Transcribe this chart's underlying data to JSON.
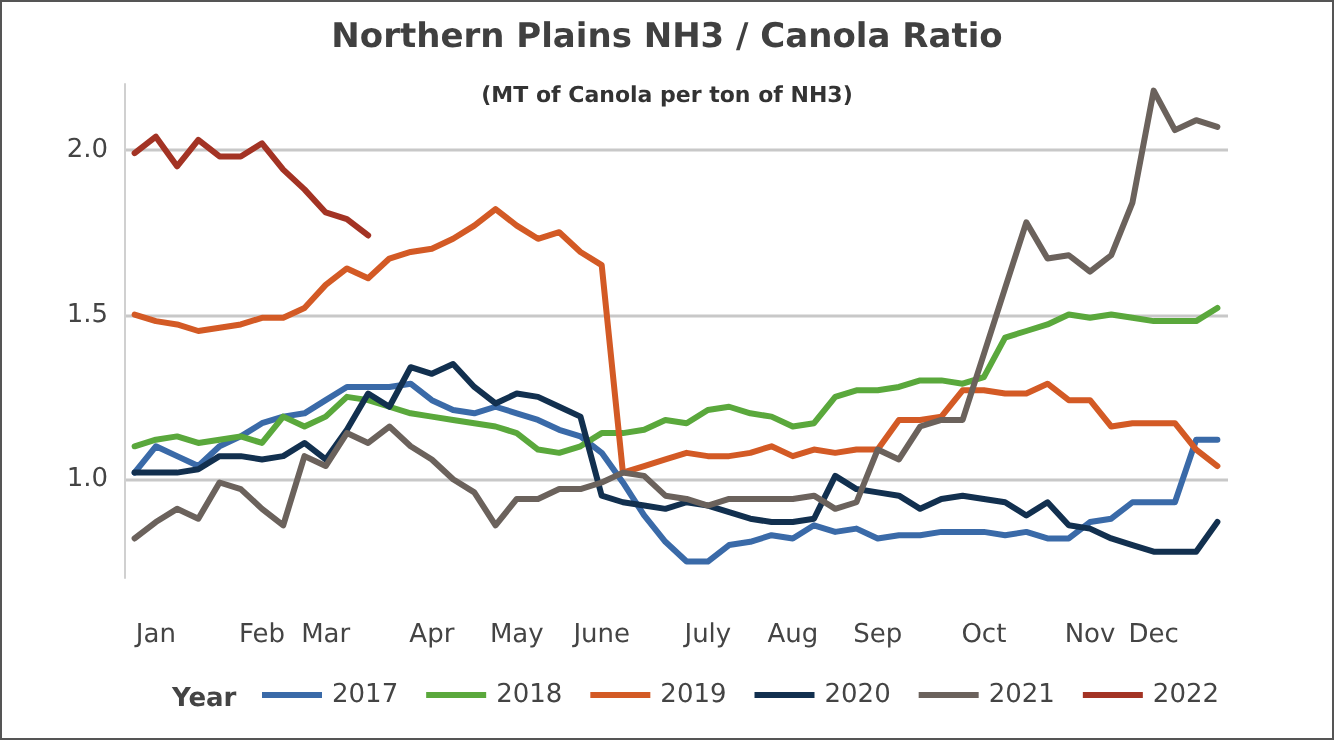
{
  "chart_data": {
    "type": "line",
    "title": "Northern Plains NH3 / Canola Ratio",
    "subtitle": "(MT of Canola per ton of NH3)",
    "legend_title": "Year",
    "legend": "bottom",
    "grid": "y",
    "marker": "none",
    "line_style": "solid",
    "categories": [
      null,
      "Jan",
      null,
      null,
      null,
      null,
      "Feb",
      null,
      null,
      "Mar",
      null,
      null,
      null,
      null,
      "Apr",
      null,
      null,
      null,
      "May",
      null,
      null,
      null,
      "June",
      null,
      null,
      null,
      null,
      "July",
      null,
      null,
      null,
      "Aug",
      null,
      null,
      null,
      "Sep",
      null,
      null,
      null,
      null,
      "Oct",
      null,
      null,
      null,
      null,
      "Nov",
      null,
      null,
      "Dec",
      null,
      null,
      null
    ],
    "ylim": [
      0.7,
      2.2
    ],
    "yticks": [
      {
        "value": 1,
        "label": "1.0"
      },
      1.5,
      {
        "value": 2,
        "label": "2.0"
      }
    ],
    "series": [
      {
        "name": "2017",
        "color": "#3a6aa8",
        "values": [
          1.02,
          1.1,
          1.07,
          1.04,
          1.1,
          1.13,
          1.17,
          1.19,
          1.2,
          1.24,
          1.28,
          1.28,
          1.28,
          1.29,
          1.24,
          1.21,
          1.2,
          1.22,
          1.2,
          1.18,
          1.15,
          1.13,
          1.08,
          0.99,
          0.89,
          0.81,
          0.75,
          0.75,
          0.8,
          0.81,
          0.83,
          0.82,
          0.86,
          0.84,
          0.85,
          0.82,
          0.83,
          0.83,
          0.84,
          0.84,
          0.84,
          0.83,
          0.84,
          0.82,
          0.82,
          0.87,
          0.88,
          0.93,
          0.93,
          0.93,
          1.12,
          1.12
        ]
      },
      {
        "name": "2018",
        "color": "#5aa83c",
        "values": [
          1.1,
          1.12,
          1.13,
          1.11,
          1.12,
          1.13,
          1.11,
          1.19,
          1.16,
          1.19,
          1.25,
          1.24,
          1.22,
          1.2,
          1.19,
          1.18,
          1.17,
          1.16,
          1.14,
          1.09,
          1.08,
          1.1,
          1.14,
          1.14,
          1.15,
          1.18,
          1.17,
          1.21,
          1.22,
          1.2,
          1.19,
          1.16,
          1.17,
          1.25,
          1.27,
          1.27,
          1.28,
          1.3,
          1.3,
          1.29,
          1.31,
          1.43,
          1.45,
          1.47,
          1.5,
          1.49,
          1.5,
          1.49,
          1.48,
          1.48,
          1.48,
          1.52
        ]
      },
      {
        "name": "2019",
        "color": "#d35a25",
        "values": [
          1.5,
          1.48,
          1.47,
          1.45,
          1.46,
          1.47,
          1.49,
          1.49,
          1.52,
          1.59,
          1.64,
          1.61,
          1.67,
          1.69,
          1.7,
          1.73,
          1.77,
          1.82,
          1.77,
          1.73,
          1.75,
          1.69,
          1.65,
          1.02,
          1.04,
          1.06,
          1.08,
          1.07,
          1.07,
          1.08,
          1.1,
          1.07,
          1.09,
          1.08,
          1.09,
          1.09,
          1.18,
          1.18,
          1.19,
          1.27,
          1.27,
          1.26,
          1.26,
          1.29,
          1.24,
          1.24,
          1.16,
          1.17,
          1.17,
          1.17,
          1.09,
          1.04
        ]
      },
      {
        "name": "2020",
        "color": "#12304f",
        "values": [
          1.02,
          1.02,
          1.02,
          1.03,
          1.07,
          1.07,
          1.06,
          1.07,
          1.11,
          1.06,
          1.15,
          1.26,
          1.22,
          1.34,
          1.32,
          1.35,
          1.28,
          1.23,
          1.26,
          1.25,
          1.22,
          1.19,
          0.95,
          0.93,
          0.92,
          0.91,
          0.93,
          0.92,
          0.9,
          0.88,
          0.87,
          0.87,
          0.88,
          1.01,
          0.97,
          0.96,
          0.95,
          0.91,
          0.94,
          0.95,
          0.94,
          0.93,
          0.89,
          0.93,
          0.86,
          0.85,
          0.82,
          0.8,
          0.78,
          0.78,
          0.78,
          0.87
        ]
      },
      {
        "name": "2021",
        "color": "#6b625c",
        "values": [
          0.82,
          0.87,
          0.91,
          0.88,
          0.99,
          0.97,
          0.91,
          0.86,
          1.07,
          1.04,
          1.14,
          1.11,
          1.16,
          1.1,
          1.06,
          1.0,
          0.96,
          0.86,
          0.94,
          0.94,
          0.97,
          0.97,
          0.99,
          1.02,
          1.01,
          0.95,
          0.94,
          0.92,
          0.94,
          0.94,
          0.94,
          0.94,
          0.95,
          0.91,
          0.93,
          1.09,
          1.06,
          1.16,
          1.18,
          1.18,
          1.38,
          1.58,
          1.78,
          1.67,
          1.68,
          1.63,
          1.68,
          1.84,
          2.18,
          2.06,
          2.09,
          2.07
        ]
      },
      {
        "name": "2022",
        "color": "#a33324",
        "values": [
          1.99,
          2.04,
          1.95,
          2.03,
          1.98,
          1.98,
          2.02,
          1.94,
          1.88,
          1.81,
          1.79,
          1.74,
          null,
          null,
          null,
          null,
          null,
          null,
          null,
          null,
          null,
          null,
          null,
          null,
          null,
          null,
          null,
          null,
          null,
          null,
          null,
          null,
          null,
          null,
          null,
          null,
          null,
          null,
          null,
          null,
          null,
          null,
          null,
          null,
          null,
          null,
          null,
          null,
          null,
          null,
          null,
          null
        ]
      }
    ]
  }
}
